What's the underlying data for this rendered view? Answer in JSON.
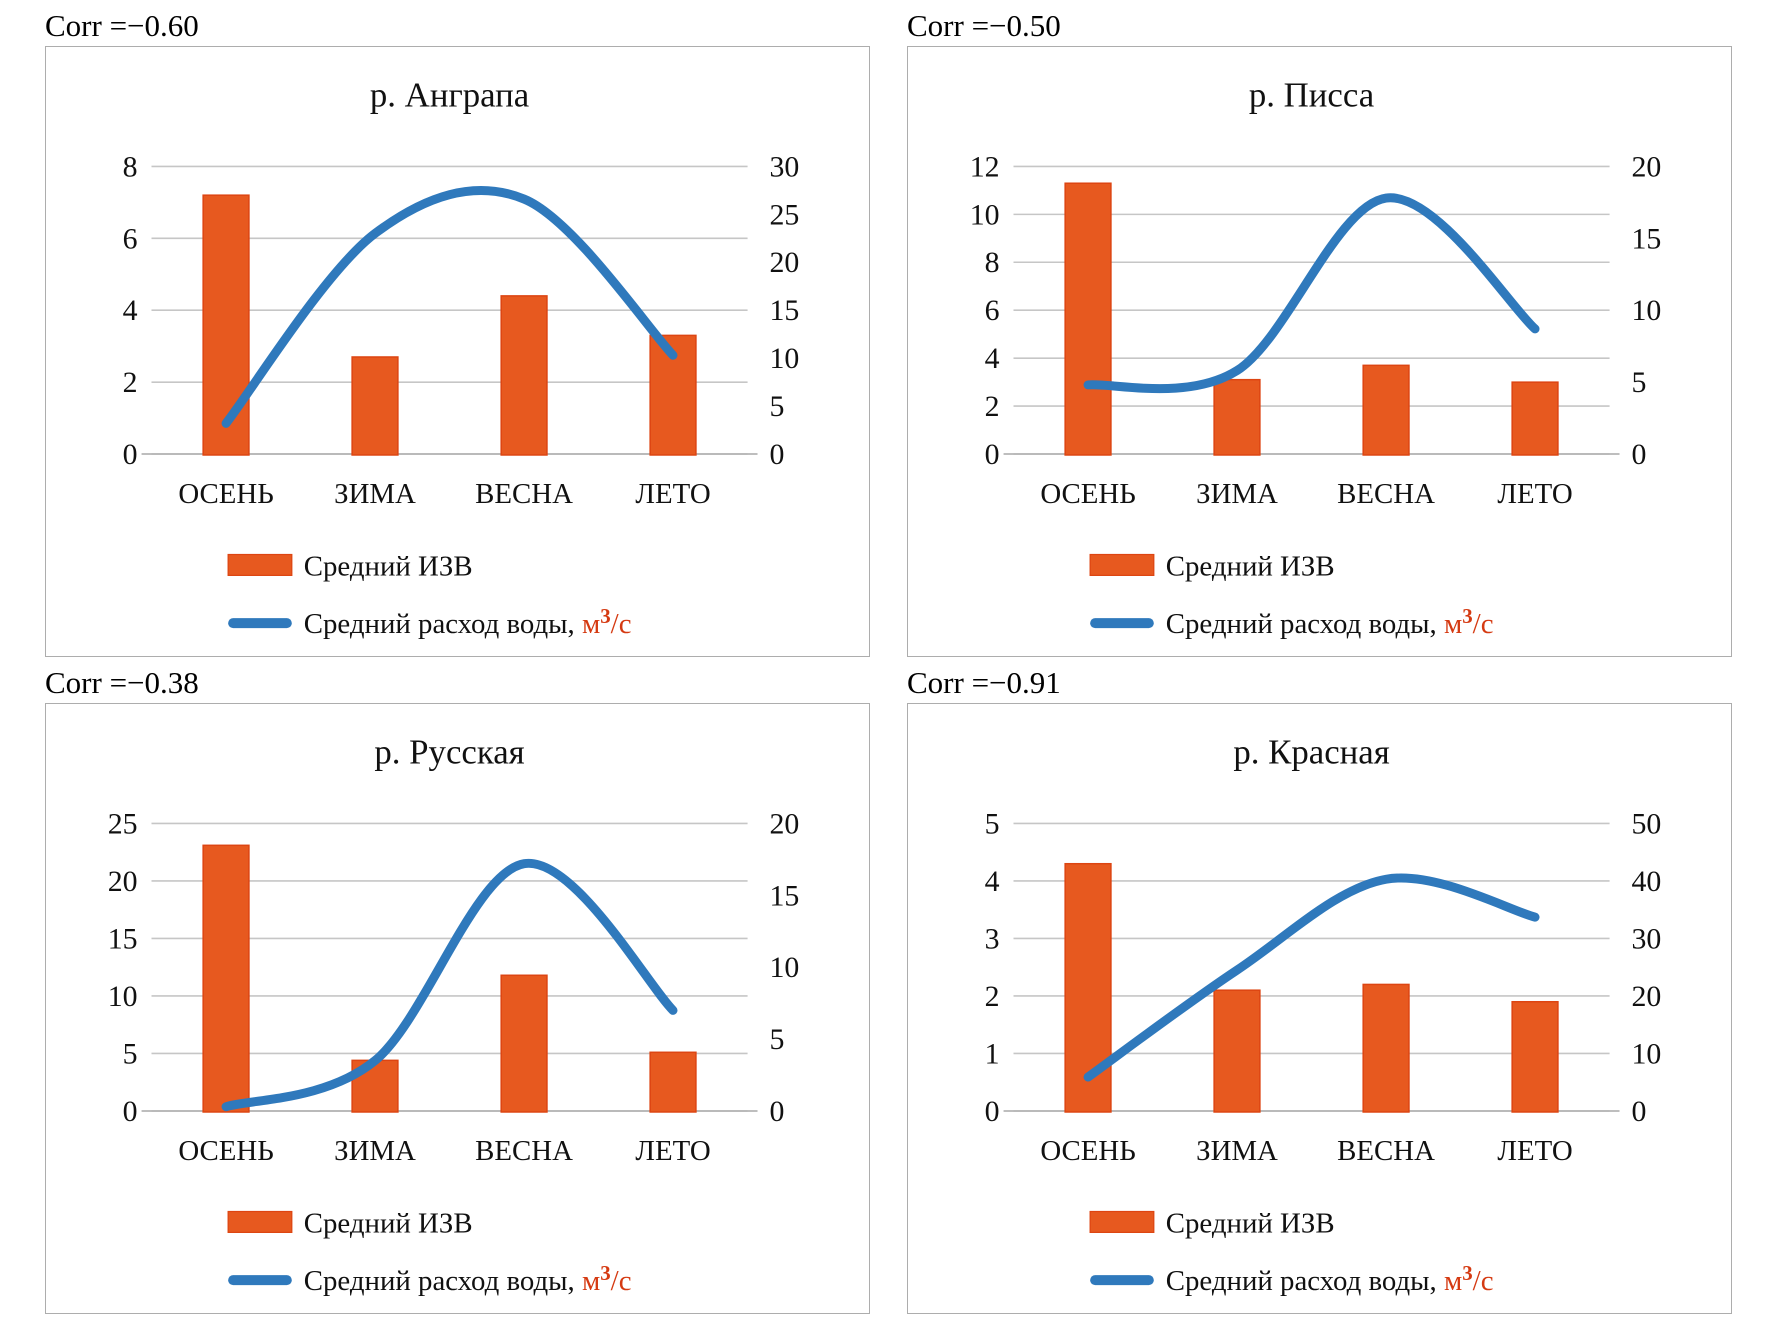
{
  "page": {
    "background": "#ffffff",
    "layout": "2x2 grid of combo charts"
  },
  "colors": {
    "bar": "#e7591f",
    "bar_border": "#dd4512",
    "line": "#2f79bc",
    "grid": "#c6c6c6",
    "axis": "#b4b4b4",
    "text": "#111111",
    "unit_text": "#d53a12",
    "panel_border": "#adadad"
  },
  "legend": {
    "bar_label": "Средний ИЗВ",
    "line_label_main": "Средний расход воды, ",
    "line_label_unit": "м³/с"
  },
  "chart_data": [
    {
      "type": "bar",
      "subtype": "bar+line combo, dual axis",
      "corr_label": "Corr =−0.60",
      "title": "р. Анграпа",
      "categories": [
        "ОСЕНЬ",
        "ЗИМА",
        "ВЕСНА",
        "ЛЕТО"
      ],
      "series": [
        {
          "name": "Средний ИЗВ",
          "type": "bar",
          "axis": "left",
          "values": [
            7.2,
            2.7,
            4.4,
            3.3
          ]
        },
        {
          "name": "Средний расход воды, м³/с",
          "type": "line",
          "axis": "right",
          "values": [
            3.2,
            23,
            26.6,
            10.3
          ]
        }
      ],
      "left_axis": {
        "min": 0,
        "max": 8,
        "ticks": [
          0,
          2,
          4,
          6,
          8
        ]
      },
      "right_axis": {
        "min": 0,
        "max": 30,
        "ticks": [
          0,
          5,
          10,
          15,
          20,
          25,
          30
        ]
      },
      "grid": "horizontal gridlines on",
      "legend_position": "bottom-left"
    },
    {
      "type": "bar",
      "subtype": "bar+line combo, dual axis",
      "corr_label": "Corr =−0.50",
      "title": "р. Писса",
      "categories": [
        "ОСЕНЬ",
        "ЗИМА",
        "ВЕСНА",
        "ЛЕТО"
      ],
      "series": [
        {
          "name": "Средний ИЗВ",
          "type": "bar",
          "axis": "left",
          "values": [
            11.3,
            3.1,
            3.7,
            3.0
          ]
        },
        {
          "name": "Средний расход воды, м³/с",
          "type": "line",
          "axis": "right",
          "values": [
            4.8,
            5.8,
            17.8,
            8.7
          ]
        }
      ],
      "left_axis": {
        "min": 0,
        "max": 12,
        "ticks": [
          0,
          2,
          4,
          6,
          8,
          10,
          12
        ]
      },
      "right_axis": {
        "min": 0,
        "max": 20,
        "ticks": [
          0,
          5,
          10,
          15,
          20
        ]
      },
      "grid": "horizontal gridlines on",
      "legend_position": "bottom-left"
    },
    {
      "type": "bar",
      "subtype": "bar+line combo, dual axis",
      "corr_label": "Corr =−0.38",
      "title": "р. Русская",
      "categories": [
        "ОСЕНЬ",
        "ЗИМА",
        "ВЕСНА",
        "ЛЕТО"
      ],
      "series": [
        {
          "name": "Средний ИЗВ",
          "type": "bar",
          "axis": "left",
          "values": [
            23.1,
            4.4,
            11.8,
            5.1
          ]
        },
        {
          "name": "Средний расход воды, м³/с",
          "type": "line",
          "axis": "right",
          "values": [
            0.3,
            3.5,
            17.2,
            7.0
          ]
        }
      ],
      "left_axis": {
        "min": 0,
        "max": 25,
        "ticks": [
          0,
          5,
          10,
          15,
          20,
          25
        ]
      },
      "right_axis": {
        "min": 0,
        "max": 20,
        "ticks": [
          0,
          5,
          10,
          15,
          20
        ]
      },
      "grid": "horizontal gridlines on",
      "legend_position": "bottom-left"
    },
    {
      "type": "bar",
      "subtype": "bar+line combo, dual axis",
      "corr_label": "Corr =−0.91",
      "title": "р. Красная",
      "categories": [
        "ОСЕНЬ",
        "ЗИМА",
        "ВЕСНА",
        "ЛЕТО"
      ],
      "series": [
        {
          "name": "Средний ИЗВ",
          "type": "bar",
          "axis": "left",
          "values": [
            4.3,
            2.1,
            2.2,
            1.9
          ]
        },
        {
          "name": "Средний расход воды, м³/с",
          "type": "line",
          "axis": "right",
          "values": [
            5.9,
            24.5,
            40.3,
            33.7
          ]
        }
      ],
      "left_axis": {
        "min": 0,
        "max": 5,
        "ticks": [
          0,
          1,
          2,
          3,
          4,
          5
        ]
      },
      "right_axis": {
        "min": 0,
        "max": 50,
        "ticks": [
          0,
          10,
          20,
          30,
          40,
          50
        ]
      },
      "grid": "horizontal gridlines on",
      "legend_position": "bottom-left"
    }
  ]
}
